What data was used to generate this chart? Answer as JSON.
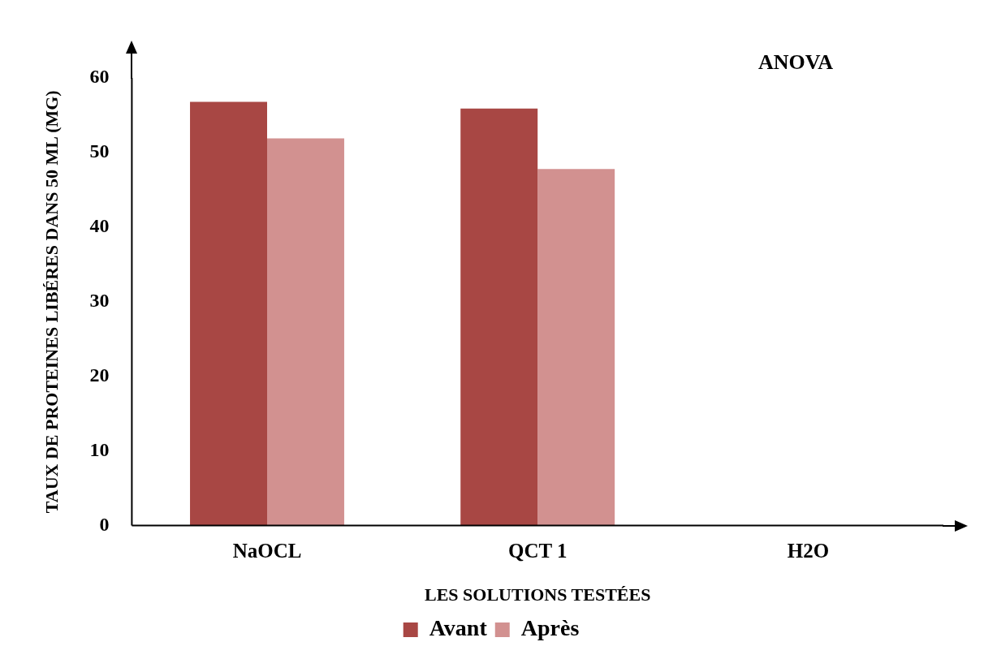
{
  "chart_data": {
    "type": "bar",
    "xlabel": "LES SOLUTIONS TESTÉES",
    "ylabel": "TAUX DE PROTEINES LIBÉRES DANS 50 ML (MG)",
    "annotations": [
      "ANOVA"
    ],
    "categories": [
      "NaOCL",
      "QCT 1",
      "H2O"
    ],
    "series": [
      {
        "name": "Avant",
        "color": "#a84744",
        "values": [
          56.8,
          55.9,
          0
        ]
      },
      {
        "name": "Après",
        "color": "#d29190",
        "values": [
          51.9,
          47.8,
          0
        ]
      }
    ],
    "ylim": [
      0,
      60
    ],
    "yticks": [
      0,
      10,
      20,
      30,
      40,
      50,
      60
    ],
    "grid": false,
    "legend": "bottom"
  }
}
